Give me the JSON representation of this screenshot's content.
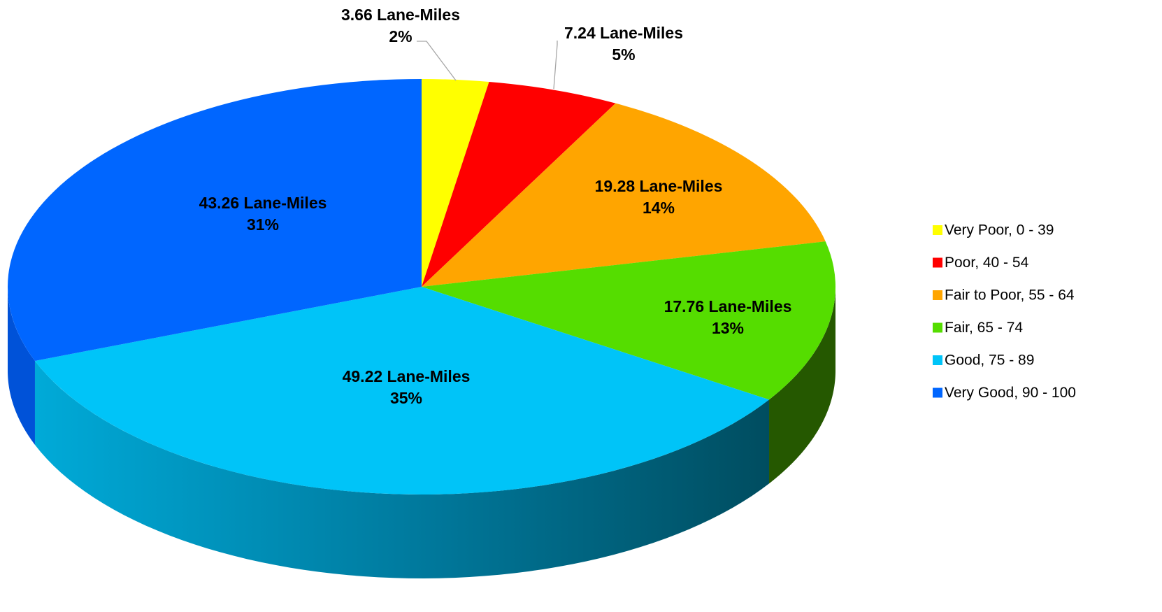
{
  "chart_data": {
    "type": "pie",
    "title": "",
    "unit": "Lane-Miles",
    "start_angle_deg": 0,
    "direction": "clockwise",
    "three_d": true,
    "legend_position": "right",
    "slices": [
      {
        "name": "Very Poor, 0 - 39",
        "value": 3.66,
        "value_label": "3.66 Lane-Miles",
        "percent_label": "2%",
        "color": "#ffff00",
        "side_color": "#b5b500"
      },
      {
        "name": "Poor, 40 - 54",
        "value": 7.24,
        "value_label": "7.24 Lane-Miles",
        "percent_label": "5%",
        "color": "#ff0000",
        "side_color": "#9c0000"
      },
      {
        "name": "Fair to Poor, 55 - 64",
        "value": 19.28,
        "value_label": "19.28 Lane-Miles",
        "percent_label": "14%",
        "color": "#ffa500",
        "side_color": "#a86d00"
      },
      {
        "name": "Fair, 65 - 74",
        "value": 17.76,
        "value_label": "17.76 Lane-Miles",
        "percent_label": "13%",
        "color": "#55dd00",
        "side_color": "#255800"
      },
      {
        "name": "Good, 75 - 89",
        "value": 49.22,
        "value_label": "49.22 Lane-Miles",
        "percent_label": "35%",
        "color": "#00c4f8",
        "side_color": "#00aad8"
      },
      {
        "name": "Very Good, 90 - 100",
        "value": 43.26,
        "value_label": "43.26 Lane-Miles",
        "percent_label": "31%",
        "color": "#0066ff",
        "side_color": "#0052d8"
      }
    ]
  }
}
